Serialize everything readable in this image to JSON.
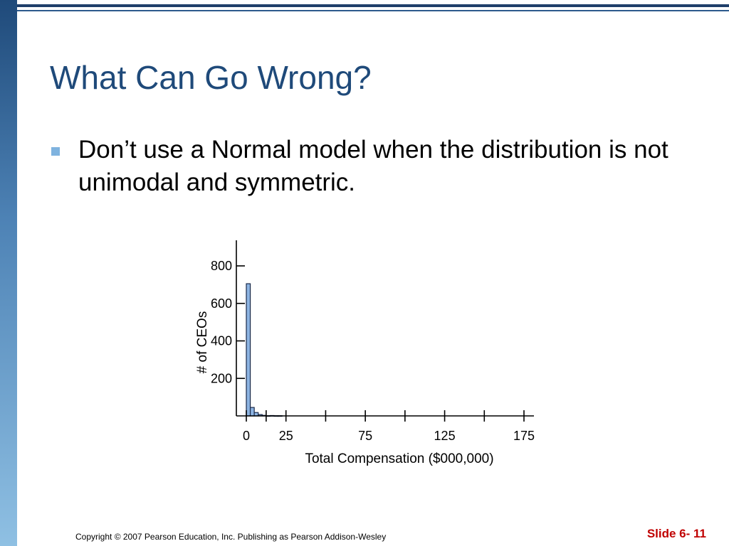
{
  "slide": {
    "title": "What Can Go Wrong?",
    "bullet": "Don’t use a Normal model when the distribution is not unimodal and symmetric.",
    "footer": "Copyright © 2007 Pearson Education, Inc. Publishing as Pearson Addison-Wesley",
    "slide_number": "Slide 6- 11"
  },
  "colors": {
    "title": "#1f4a7a",
    "bar_fill": "#8db4e2",
    "bar_stroke": "#1a2a4a",
    "slide_number": "#c00000"
  },
  "chart_data": {
    "type": "bar",
    "title": "",
    "xlabel": "Total Compensation ($000,000)",
    "ylabel": "# of CEOs",
    "bin_width": 2.5,
    "bins_start": [
      0,
      2.5,
      5,
      7.5,
      10,
      12.5,
      15,
      17.5,
      20
    ],
    "values": [
      705,
      45,
      18,
      7,
      3,
      1,
      2,
      1,
      1
    ],
    "xlim": [
      -2.5,
      180
    ],
    "ylim": [
      0,
      900
    ],
    "x_major_ticks": [
      0,
      25,
      75,
      125,
      175
    ],
    "x_minor_ticks": [
      12.5,
      50,
      100,
      150
    ],
    "y_ticks": [
      200,
      400,
      600,
      800
    ],
    "grid": false
  }
}
